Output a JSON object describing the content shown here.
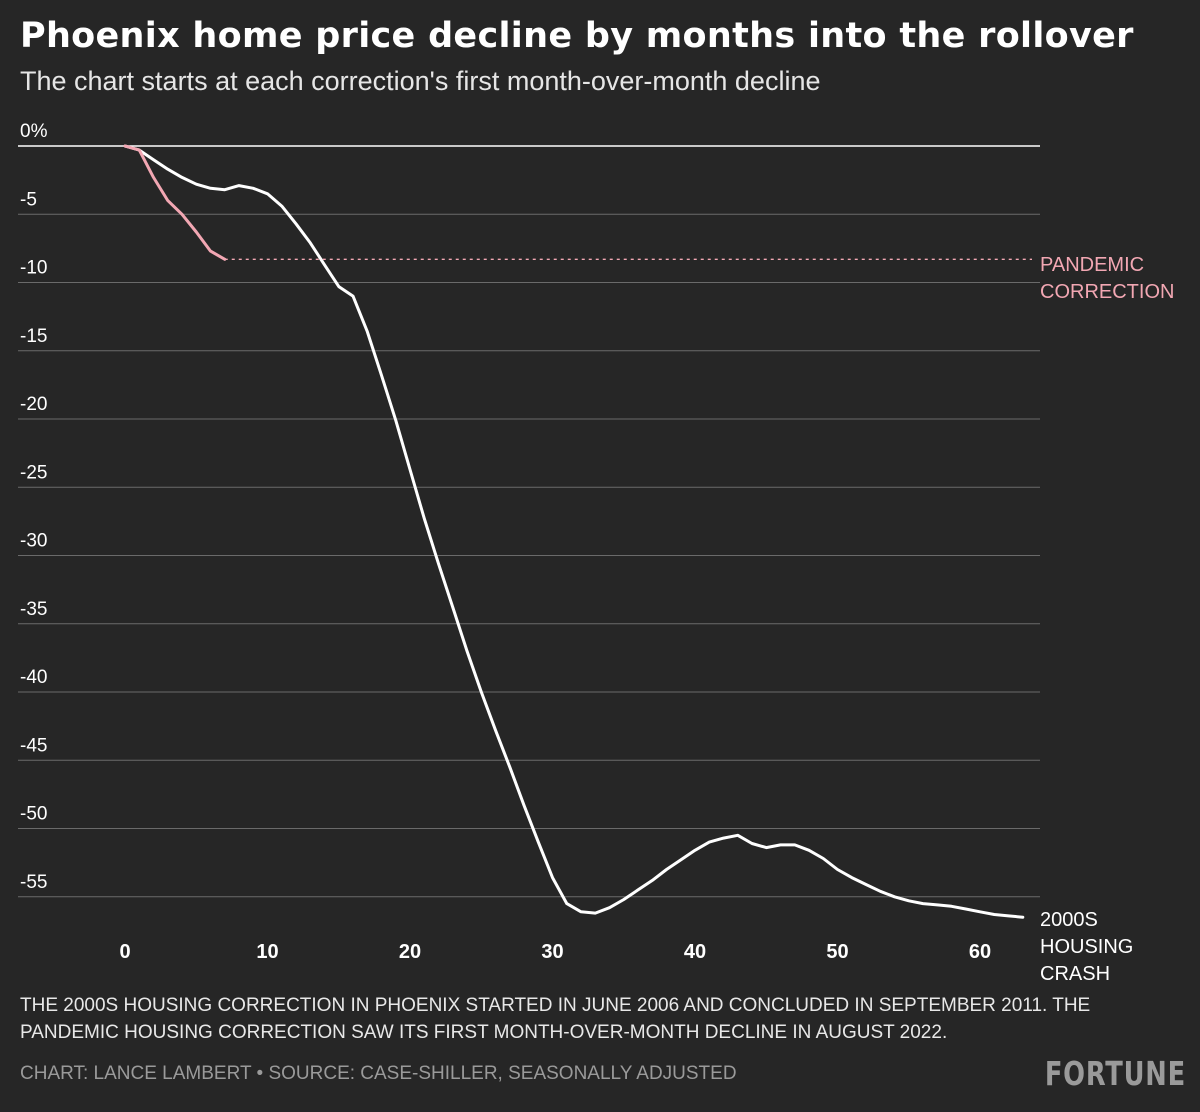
{
  "header": {
    "title": "Phoenix home price decline by months into the rollover",
    "subtitle": "The chart starts at each correction's first month-over-month decline"
  },
  "footer": {
    "note": "THE 2000S HOUSING CORRECTION IN PHOENIX STARTED IN JUNE 2006 AND CONCLUDED IN SEPTEMBER 2011. THE PANDEMIC HOUSING CORRECTION SAW ITS FIRST MONTH-OVER-MONTH DECLINE IN AUGUST 2022.",
    "credit": "CHART: LANCE LAMBERT • SOURCE: CASE-SHILLER, SEASONALLY ADJUSTED",
    "brand": "FORTUNE"
  },
  "colors": {
    "background": "#262626",
    "housing_crash_line": "#ffffff",
    "pandemic_line": "#f2a7b3",
    "grid": "#6a6a6a"
  },
  "chart_data": {
    "type": "line",
    "title": "Phoenix home price decline by months into the rollover",
    "subtitle": "The chart starts at each correction's first month-over-month decline",
    "xlabel": "",
    "ylabel": "",
    "xlim": [
      0,
      63
    ],
    "ylim": [
      -57,
      0
    ],
    "x_ticks": [
      0,
      10,
      20,
      30,
      40,
      50,
      60
    ],
    "x_tick_labels": [
      "0",
      "10",
      "20",
      "30",
      "40",
      "50",
      "60"
    ],
    "y_ticks": [
      0,
      -5,
      -10,
      -15,
      -20,
      -25,
      -30,
      -35,
      -40,
      -45,
      -50,
      -55
    ],
    "y_tick_labels": [
      "0%",
      "-5",
      "-10",
      "-15",
      "-20",
      "-25",
      "-30",
      "-35",
      "-40",
      "-45",
      "-50",
      "-55"
    ],
    "grid": true,
    "series": [
      {
        "name": "2000S HOUSING CRASH",
        "label_lines": [
          "2000S",
          "HOUSING",
          "CRASH"
        ],
        "x": [
          0,
          1,
          2,
          3,
          4,
          5,
          6,
          7,
          8,
          9,
          10,
          11,
          12,
          13,
          14,
          15,
          16,
          17,
          18,
          19,
          20,
          21,
          22,
          23,
          24,
          25,
          26,
          27,
          28,
          29,
          30,
          31,
          32,
          33,
          34,
          35,
          36,
          37,
          38,
          39,
          40,
          41,
          42,
          43,
          44,
          45,
          46,
          47,
          48,
          49,
          50,
          51,
          52,
          53,
          54,
          55,
          56,
          57,
          58,
          59,
          60,
          61,
          62,
          63
        ],
        "values": [
          0,
          -0.3,
          -1.0,
          -1.7,
          -2.3,
          -2.8,
          -3.1,
          -3.2,
          -2.9,
          -3.1,
          -3.5,
          -4.4,
          -5.7,
          -7.1,
          -8.7,
          -10.3,
          -11.0,
          -13.6,
          -16.8,
          -20.1,
          -23.7,
          -27.3,
          -30.6,
          -33.8,
          -37.0,
          -40.0,
          -42.8,
          -45.5,
          -48.3,
          -51.0,
          -53.6,
          -55.5,
          -56.1,
          -56.2,
          -55.8,
          -55.2,
          -54.5,
          -53.8,
          -53.0,
          -52.3,
          -51.6,
          -51.0,
          -50.7,
          -50.5,
          -51.1,
          -51.4,
          -51.2,
          -51.2,
          -51.6,
          -52.2,
          -53.0,
          -53.6,
          -54.1,
          -54.6,
          -55.0,
          -55.3,
          -55.5,
          -55.6,
          -55.7,
          -55.9,
          -56.1,
          -56.3,
          -56.4,
          -56.5
        ]
      },
      {
        "name": "PANDEMIC CORRECTION",
        "label_lines": [
          "PANDEMIC",
          "CORRECTION"
        ],
        "x": [
          0,
          1,
          2,
          3,
          4,
          5,
          6,
          7
        ],
        "values": [
          0,
          -0.3,
          -2.3,
          -4.0,
          -5.0,
          -6.3,
          -7.7,
          -8.3
        ],
        "latest_value_reference": -8.3
      }
    ]
  }
}
